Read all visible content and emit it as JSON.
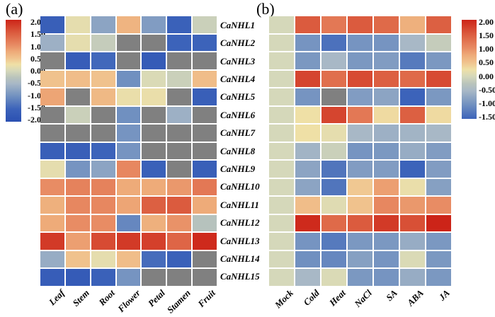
{
  "figure_type": "dual-heatmap-gene-expression-figure",
  "color_scale": {
    "na_color": "#808080",
    "stops": [
      [
        2.0,
        "#cc2418"
      ],
      [
        1.5,
        "#db5b3e"
      ],
      [
        1.0,
        "#e88c64"
      ],
      [
        0.75,
        "#eeab79"
      ],
      [
        0.5,
        "#f0c28d"
      ],
      [
        0.25,
        "#efe0a6"
      ],
      [
        0.0,
        "#d5d8ba"
      ],
      [
        -0.25,
        "#bac4bb"
      ],
      [
        -0.5,
        "#a8b8c6"
      ],
      [
        -1.0,
        "#7090c0"
      ],
      [
        -1.5,
        "#3c63ba"
      ],
      [
        -2.0,
        "#2b50b2"
      ]
    ]
  },
  "chart_data": [
    {
      "type": "heatmap",
      "panel_label": "(a)",
      "columns": [
        "Leaf",
        "Stem",
        "Root",
        "Flower",
        "Petal",
        "Stamen",
        "Fruit"
      ],
      "rows": [
        "CaNHL1",
        "CaNHL2",
        "CaNHL3",
        "CaNHL4",
        "CaNHL5",
        "CaNHL6",
        "CaNHL7",
        "CaNHL8",
        "CaNHL9",
        "CaNHL10",
        "CaNHL11",
        "CaNHL12",
        "CaNHL13",
        "CaNHL14",
        "CaNHL15"
      ],
      "colorbar": {
        "position": "left",
        "vmax": 2.0,
        "vmin": -2.0,
        "ticks": [
          "2.00",
          "1.50",
          "1.00",
          "0.50",
          "0.00",
          "-0.50",
          "-1.00",
          "-1.50",
          "-2.00"
        ]
      },
      "values": [
        [
          -1.6,
          0.15,
          -0.75,
          0.65,
          -0.85,
          -1.55,
          -0.1
        ],
        [
          -0.6,
          0.15,
          -0.15,
          null,
          null,
          -1.5,
          -1.5
        ],
        [
          null,
          -1.65,
          -1.45,
          null,
          -1.7,
          null,
          null
        ],
        [
          0.5,
          0.55,
          0.5,
          -1.0,
          0.05,
          -0.1,
          0.55
        ],
        [
          0.8,
          null,
          0.6,
          0.2,
          0.2,
          null,
          -1.6
        ],
        [
          null,
          -0.1,
          null,
          -1.0,
          null,
          -0.6,
          null
        ],
        [
          null,
          null,
          null,
          -0.95,
          null,
          null,
          null
        ],
        [
          -1.6,
          -1.6,
          -1.5,
          -0.95,
          null,
          null,
          null
        ],
        [
          0.15,
          -0.95,
          -0.75,
          1.05,
          -1.55,
          null,
          -1.6
        ],
        [
          1.0,
          1.1,
          1.1,
          0.75,
          0.75,
          0.9,
          1.2
        ],
        [
          0.7,
          1.05,
          1.05,
          0.8,
          1.45,
          1.5,
          0.75
        ],
        [
          0.75,
          1.0,
          1.0,
          -1.1,
          0.7,
          0.95,
          -0.3
        ],
        [
          1.8,
          0.85,
          1.65,
          1.8,
          1.75,
          1.4,
          1.95
        ],
        [
          -0.65,
          0.5,
          0.15,
          0.55,
          -1.4,
          -1.55,
          null
        ],
        [
          -1.65,
          -1.7,
          -1.55,
          -0.95,
          null,
          null,
          null
        ]
      ]
    },
    {
      "type": "heatmap",
      "panel_label": "(b)",
      "columns": [
        "Mock",
        "Cold",
        "Heat",
        "NaCl",
        "SA",
        "ABA",
        "JA"
      ],
      "rows": [
        "CaNHL1",
        "CaNHL2",
        "CaNHL3",
        "CaNHL4",
        "CaNHL5",
        "CaNHL6",
        "CaNHL7",
        "CaNHL8",
        "CaNHL9",
        "CaNHL10",
        "CaNHL11",
        "CaNHL12",
        "CaNHL13",
        "CaNHL14",
        "CaNHL15"
      ],
      "colorbar": {
        "position": "right",
        "vmax": 2.0,
        "vmin": -1.5,
        "ticks": [
          "2.00",
          "1.50",
          "1.00",
          "0.50",
          "0.00",
          "-0.50",
          "-1.00",
          "-1.50"
        ]
      },
      "values": [
        [
          0,
          1.5,
          1.2,
          1.5,
          1.35,
          0.7,
          1.45
        ],
        [
          0,
          -0.95,
          -1.35,
          -0.95,
          -0.95,
          -0.5,
          -0.15
        ],
        [
          0,
          -0.9,
          -0.5,
          -0.9,
          -0.85,
          -1.25,
          -0.9
        ],
        [
          0,
          1.7,
          1.3,
          1.65,
          1.45,
          1.35,
          1.65
        ],
        [
          0,
          -0.95,
          null,
          -0.85,
          -0.75,
          -1.5,
          -0.9
        ],
        [
          0,
          0.25,
          1.7,
          1.2,
          0.3,
          1.45,
          0.3
        ],
        [
          0,
          0.25,
          0.15,
          -0.5,
          -0.6,
          -0.55,
          -0.5
        ],
        [
          0,
          -0.55,
          -0.1,
          -0.95,
          -0.9,
          -0.65,
          -0.85
        ],
        [
          0,
          -0.75,
          -1.3,
          -0.85,
          -0.85,
          -1.5,
          -0.85
        ],
        [
          0,
          -0.75,
          -1.3,
          0.45,
          0.85,
          0.2,
          -0.8
        ],
        [
          0,
          0.55,
          0.1,
          0.5,
          1.05,
          0.9,
          1.0
        ],
        [
          0,
          1.95,
          1.35,
          1.5,
          1.8,
          1.6,
          2.0
        ],
        [
          0,
          -0.95,
          -1.25,
          -0.9,
          -0.9,
          -0.65,
          -0.9
        ],
        [
          0,
          -1.0,
          -1.1,
          -0.8,
          -0.95,
          0.05,
          -0.9
        ],
        [
          0,
          -0.5,
          0.05,
          -0.9,
          -0.95,
          -0.65,
          -0.9
        ]
      ]
    }
  ]
}
